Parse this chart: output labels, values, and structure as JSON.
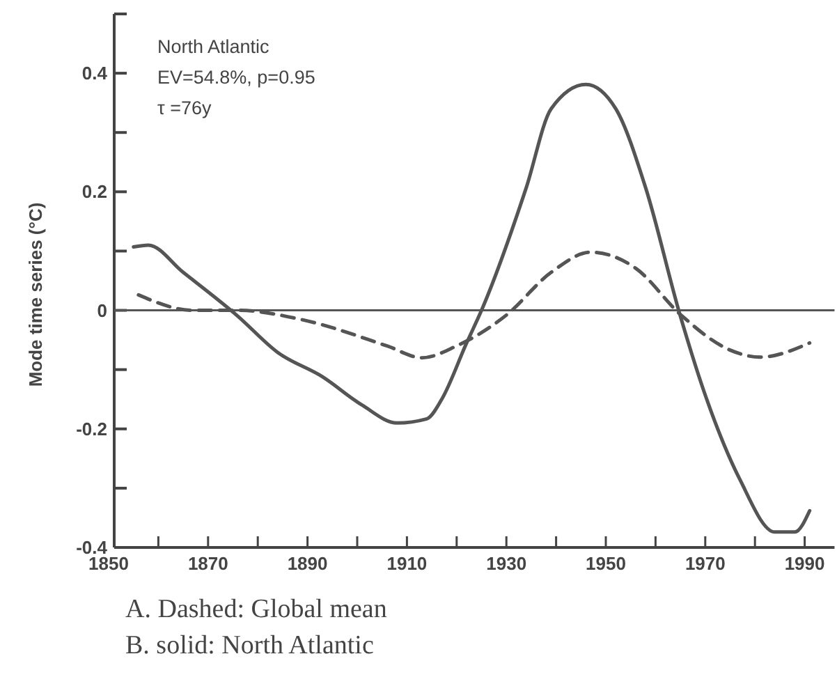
{
  "chart_data": {
    "type": "line",
    "ylabel": "Mode time series (°C)",
    "xlim": [
      1850,
      1996
    ],
    "ylim": [
      -0.4,
      0.5
    ],
    "xticks": [
      1850,
      {
        "value": 1860,
        "label": null
      },
      1870,
      {
        "value": 1880,
        "label": null
      },
      1890,
      {
        "value": 1900,
        "label": null
      },
      1910,
      {
        "value": 1920,
        "label": null
      },
      1930,
      {
        "value": 1940,
        "label": null
      },
      1950,
      {
        "value": 1960,
        "label": null
      },
      1970,
      {
        "value": 1980,
        "label": null
      },
      1990
    ],
    "yticks": [
      -0.4,
      {
        "value": -0.3,
        "label": null
      },
      -0.2,
      {
        "value": -0.1,
        "label": null
      },
      0,
      {
        "value": 0.1,
        "label": null
      },
      0.2,
      {
        "value": 0.3,
        "label": null
      },
      0.4
    ],
    "ref_lines": [
      {
        "axis": "y",
        "value": 0,
        "color": "#555555",
        "line_style": "solid"
      }
    ],
    "series": [
      {
        "color": "#555555",
        "line_style": "solid",
        "x": [
          1855,
          1858,
          1865,
          1876,
          1884,
          1893,
          1901,
          1908,
          1914,
          1917,
          1922,
          1925,
          1934,
          1939,
          1946,
          1952,
          1958,
          1965,
          1970,
          1977,
          1984,
          1988,
          1991
        ],
        "values": [
          0.107,
          0.11,
          0.064,
          -0.01,
          -0.071,
          -0.112,
          -0.16,
          -0.19,
          -0.183,
          -0.15,
          -0.055,
          0,
          0.207,
          0.34,
          0.381,
          0.34,
          0.207,
          -0.01,
          -0.143,
          -0.286,
          -0.374,
          -0.374,
          -0.338
        ]
      },
      {
        "color": "#555555",
        "line_style": "dashed",
        "x": [
          1856,
          1867,
          1876,
          1889,
          1906,
          1913,
          1920,
          1930,
          1939,
          1947,
          1956,
          1965,
          1975,
          1981,
          1991
        ],
        "values": [
          0.026,
          0,
          0,
          -0.016,
          -0.06,
          -0.08,
          -0.06,
          -0.008,
          0.064,
          0.098,
          0.071,
          -0.007,
          -0.067,
          -0.079,
          -0.055
        ]
      }
    ],
    "annotations": [
      "North Atlantic",
      "EV=54.8%, p=0.95",
      "τ =76y",
      "A. Dashed: Global mean",
      "B. solid: North Atlantic"
    ]
  }
}
